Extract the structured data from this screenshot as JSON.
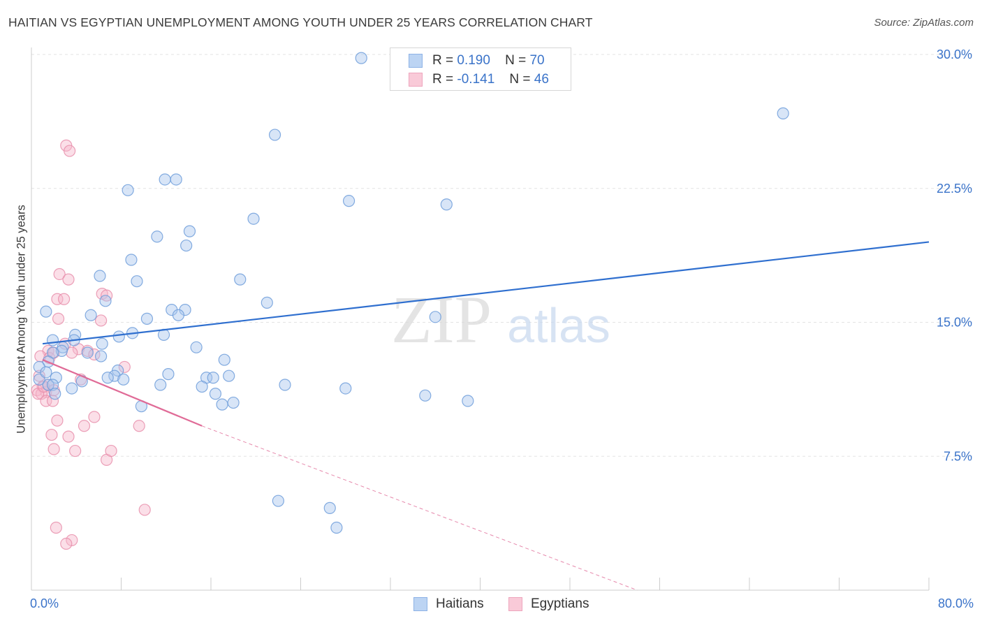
{
  "title": "HAITIAN VS EGYPTIAN UNEMPLOYMENT AMONG YOUTH UNDER 25 YEARS CORRELATION CHART",
  "source": "Source: ZipAtlas.com",
  "watermark": {
    "zip": "ZIP",
    "atlas": "atlas"
  },
  "legend": {
    "haitians": {
      "r_label": "R =",
      "r_value": "0.190",
      "n_label": "N =",
      "n_value": "70"
    },
    "egyptians": {
      "r_label": "R =",
      "r_value": "-0.141",
      "n_label": "N =",
      "n_value": "46"
    }
  },
  "colors": {
    "haitians_fill": "#a9c6ee",
    "haitians_stroke": "#6f9ddb",
    "haitians_line": "#2f6fcf",
    "egyptians_fill": "#f6b9cb",
    "egyptians_stroke": "#e88fab",
    "egyptians_line": "#e06b97",
    "tick_label": "#3a73c9",
    "grid": "#e3e3e3"
  },
  "chart_data": {
    "type": "scatter",
    "title": "HAITIAN VS EGYPTIAN UNEMPLOYMENT AMONG YOUTH UNDER 25 YEARS CORRELATION CHART",
    "xlabel": "",
    "ylabel": "Unemployment Among Youth under 25 years",
    "xlim": [
      0,
      80
    ],
    "ylim": [
      0,
      30
    ],
    "x_tick_labels": [
      "0.0%",
      "80.0%"
    ],
    "y_ticks": [
      7.5,
      15,
      22.5,
      30
    ],
    "y_tick_labels": [
      "7.5%",
      "15.0%",
      "22.5%",
      "30.0%"
    ],
    "grid": "horizontal dashed",
    "legend_position": "top-center",
    "series": [
      {
        "name": "Haitians",
        "x": [
          29.4,
          67.0,
          21.7,
          11.9,
          12.9,
          8.6,
          28.3,
          37.0,
          19.8,
          11.2,
          14.1,
          13.8,
          8.9,
          18.6,
          6.1,
          9.4,
          6.6,
          21.0,
          12.5,
          13.7,
          36.0,
          10.3,
          13.1,
          9.0,
          1.3,
          5.3,
          7.8,
          1.9,
          3.9,
          6.3,
          2.8,
          3.8,
          2.7,
          5.0,
          1.9,
          1.5,
          0.7,
          12.2,
          15.6,
          7.7,
          7.4,
          8.2,
          11.8,
          14.7,
          17.2,
          16.2,
          17.6,
          15.2,
          4.5,
          6.8,
          3.6,
          1.5,
          0.7,
          2.2,
          1.9,
          11.5,
          22.6,
          16.4,
          17.0,
          18.0,
          28.0,
          35.1,
          38.9,
          9.8,
          22.0,
          27.2,
          26.6,
          2.1,
          6.2,
          1.3
        ],
        "y": [
          29.8,
          26.7,
          25.5,
          23.0,
          23.0,
          22.4,
          21.8,
          21.6,
          20.8,
          19.8,
          20.1,
          19.3,
          18.5,
          17.4,
          17.6,
          17.3,
          16.2,
          16.1,
          15.7,
          15.7,
          15.3,
          15.2,
          15.4,
          14.4,
          15.6,
          15.4,
          14.2,
          14.0,
          14.3,
          13.8,
          13.6,
          14.0,
          13.4,
          13.3,
          13.3,
          12.8,
          12.5,
          12.1,
          11.9,
          12.3,
          12.0,
          11.8,
          14.3,
          13.6,
          12.9,
          11.9,
          12.0,
          11.4,
          11.7,
          11.9,
          11.3,
          11.5,
          11.8,
          11.9,
          11.5,
          11.5,
          11.5,
          11.0,
          10.4,
          10.5,
          11.3,
          10.9,
          10.6,
          10.3,
          5.0,
          3.5,
          4.6,
          11.0,
          13.1,
          12.2
        ]
      },
      {
        "name": "Egyptians",
        "x": [
          3.1,
          3.4,
          2.5,
          3.3,
          2.3,
          2.9,
          6.3,
          6.7,
          2.4,
          6.2,
          3.0,
          4.2,
          1.5,
          3.6,
          0.8,
          1.6,
          2.0,
          5.0,
          5.6,
          8.3,
          0.7,
          1.0,
          0.5,
          1.3,
          1.5,
          0.9,
          2.0,
          1.3,
          1.9,
          0.6,
          2.3,
          4.4,
          1.1,
          5.6,
          4.7,
          1.8,
          3.3,
          9.6,
          2.0,
          3.9,
          6.7,
          10.1,
          2.2,
          3.6,
          3.1,
          7.1
        ],
        "y": [
          24.9,
          24.6,
          17.7,
          17.4,
          16.3,
          16.3,
          16.6,
          16.5,
          15.2,
          15.1,
          13.8,
          13.5,
          13.4,
          13.3,
          13.1,
          13.0,
          13.3,
          13.4,
          13.2,
          12.5,
          12.0,
          11.4,
          11.2,
          11.1,
          11.5,
          11.0,
          11.2,
          10.6,
          10.6,
          11.0,
          9.5,
          11.8,
          11.4,
          9.7,
          9.2,
          8.7,
          8.6,
          9.2,
          7.9,
          7.8,
          7.3,
          4.5,
          3.5,
          2.8,
          2.6,
          7.8
        ]
      }
    ],
    "trend_lines": [
      {
        "name": "Haitians",
        "x": [
          1,
          80
        ],
        "y": [
          13.8,
          19.5
        ]
      },
      {
        "name": "Egyptians",
        "x": [
          1,
          15.2
        ],
        "y": [
          12.9,
          9.2
        ],
        "dashed_extension_to": [
          54,
          0
        ]
      }
    ]
  },
  "bottom_legend": {
    "haitians": "Haitians",
    "egyptians": "Egyptians"
  }
}
